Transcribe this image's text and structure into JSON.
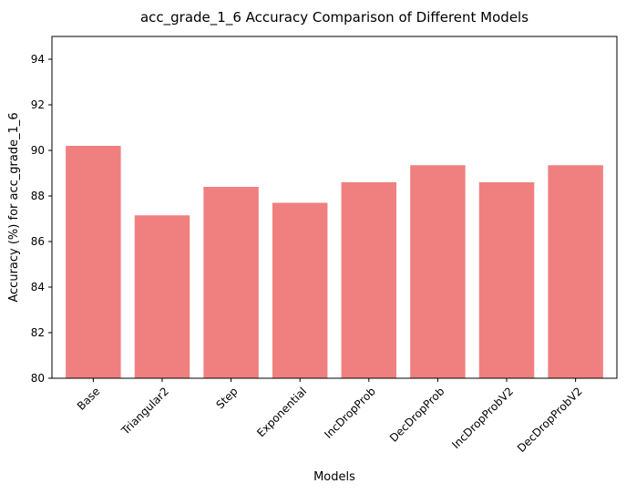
{
  "chart_data": {
    "type": "bar",
    "title": "acc_grade_1_6 Accuracy Comparison of Different Models",
    "xlabel": "Models",
    "ylabel": "Accuracy (%) for acc_grade_1_6",
    "categories": [
      "Base",
      "Triangular2",
      "Step",
      "Exponential",
      "IncDropProb",
      "DecDropProb",
      "IncDropProbV2",
      "DecDropProbV2"
    ],
    "values": [
      90.2,
      87.15,
      88.4,
      87.7,
      88.6,
      89.35,
      88.6,
      89.35
    ],
    "ylim": [
      80,
      95
    ],
    "yticks": [
      80,
      82,
      84,
      86,
      88,
      90,
      92,
      94
    ],
    "grid": false,
    "legend": "none",
    "bar_color": "#f08080"
  }
}
